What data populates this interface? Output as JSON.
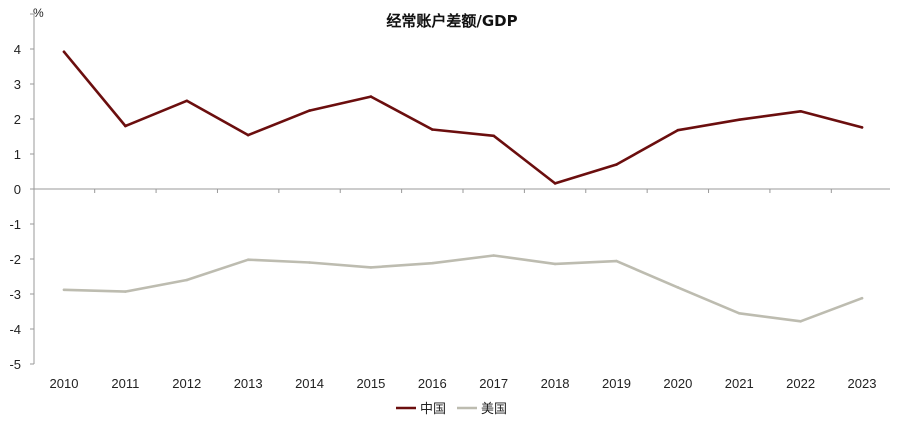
{
  "chart_data": {
    "type": "line",
    "title": "经常账户差额/GDP",
    "ylabel": "%",
    "xlabel": "",
    "categories": [
      "2010",
      "2011",
      "2012",
      "2013",
      "2014",
      "2015",
      "2016",
      "2017",
      "2018",
      "2019",
      "2020",
      "2021",
      "2022",
      "2023"
    ],
    "y_ticks": [
      "4",
      "3",
      "2",
      "1",
      "0",
      "-1",
      "-2",
      "-3",
      "-4",
      "-5"
    ],
    "ylim": [
      -5,
      4
    ],
    "grid": false,
    "legend": "bottom",
    "series": [
      {
        "name": "中国",
        "color": "#6b0e0e",
        "values": [
          3.92,
          1.8,
          2.52,
          1.54,
          2.24,
          2.64,
          1.7,
          1.52,
          0.16,
          0.7,
          1.68,
          1.98,
          2.22,
          1.76
        ]
      },
      {
        "name": "美国",
        "color": "#bdbcb0",
        "values": [
          -2.88,
          -2.93,
          -2.6,
          -2.02,
          -2.1,
          -2.24,
          -2.12,
          -1.9,
          -2.14,
          -2.06,
          -2.81,
          -3.55,
          -3.78,
          -3.12
        ]
      }
    ]
  }
}
